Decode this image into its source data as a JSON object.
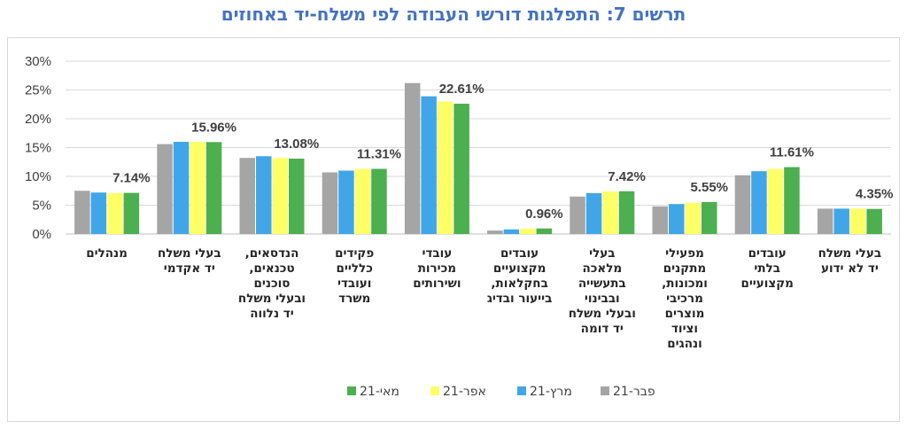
{
  "chart_data": {
    "type": "bar",
    "title": "תרשים 7:  התפלגות דורשי העבודה לפי משלח-יד באחוזים",
    "ylim": [
      0,
      30
    ],
    "yticks": [
      "0%",
      "5%",
      "10%",
      "15%",
      "20%",
      "25%",
      "30%"
    ],
    "grid": true,
    "legend_position": "bottom",
    "categories": [
      [
        "מנהלים"
      ],
      [
        "בעלי משלח",
        "יד אקדמי"
      ],
      [
        "הנדסאים,",
        "טכנאים,",
        "סוכנים",
        "ובעלי משלח",
        "יד נלווה"
      ],
      [
        "פקידים",
        "כלליים",
        "ועובדי",
        "משרד"
      ],
      [
        "עובדי",
        "מכירות",
        "ושירותים"
      ],
      [
        "עובדים",
        "מקצועיים",
        "בחקלאות,",
        "בייעור ובדיג"
      ],
      [
        "בעלי",
        "מלאכה",
        "בתעשייה",
        "ובבינוי",
        "ובעלי משלח",
        "יד דומה"
      ],
      [
        "מפעילי",
        "מתקנים",
        "ומכונות,",
        "מרכיבי",
        "מוצרים",
        "וציוד",
        "ונהגים"
      ],
      [
        "עובדים",
        "בלתי",
        "מקצועיים"
      ],
      [
        "בעלי משלח",
        "יד לא ידוע"
      ]
    ],
    "series": [
      {
        "name": "פבר-21",
        "color": "#a5a5a5",
        "values": [
          7.5,
          15.6,
          13.2,
          10.7,
          26.2,
          0.6,
          6.5,
          4.8,
          10.2,
          4.4
        ]
      },
      {
        "name": "מרץ-21",
        "color": "#41a6e8",
        "values": [
          7.2,
          16.0,
          13.5,
          11.0,
          23.9,
          0.8,
          7.1,
          5.2,
          10.9,
          4.4
        ]
      },
      {
        "name": "אפר-21",
        "color": "#ffff66",
        "values": [
          7.1,
          16.0,
          13.2,
          11.3,
          23.0,
          0.9,
          7.4,
          5.4,
          11.3,
          4.4
        ]
      },
      {
        "name": "מאי-21",
        "color": "#4caf50",
        "values": [
          7.14,
          15.96,
          13.08,
          11.31,
          22.61,
          0.96,
          7.42,
          5.55,
          11.61,
          4.35
        ]
      }
    ],
    "data_labels": [
      "7.14%",
      "15.96%",
      "13.08%",
      "11.31%",
      "22.61%",
      "0.96%",
      "7.42%",
      "5.55%",
      "11.61%",
      "4.35%"
    ]
  }
}
